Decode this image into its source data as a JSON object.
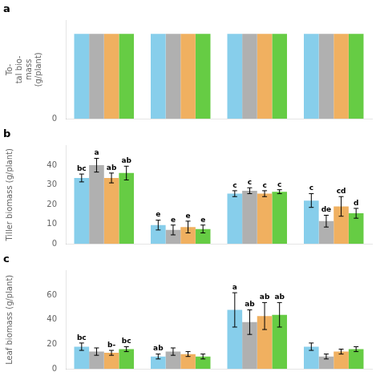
{
  "chart_data": [
    {
      "type": "bar",
      "title": "a",
      "ylabel": "To-\ntal bio-\nmass\n(g/plant)",
      "categories": [
        null,
        null,
        null,
        null
      ],
      "series": [
        {
          "color": "#87CEEB",
          "values": [
            95,
            95,
            95,
            95
          ]
        },
        {
          "color": "#B0B0B0",
          "values": [
            95,
            95,
            95,
            95
          ]
        },
        {
          "color": "#F0B060",
          "values": [
            95,
            95,
            95,
            95
          ]
        },
        {
          "color": "#66CC44",
          "values": [
            95,
            95,
            95,
            95
          ]
        }
      ],
      "ylim": [
        0,
        110
      ],
      "yticks": [
        0
      ],
      "grid": false,
      "tick_labels": "y"
    },
    {
      "type": "bar",
      "title": "b",
      "ylabel": "Tiller biomass (g/plant)",
      "categories": [
        null,
        null,
        null,
        null
      ],
      "series": [
        {
          "color": "#87CEEB",
          "values": [
            33.5,
            9.5,
            25.5,
            22.0
          ],
          "errors": [
            2.0,
            2.5,
            1.5,
            3.5
          ],
          "annotations": [
            "bc",
            "e",
            "c",
            "c"
          ]
        },
        {
          "color": "#B0B0B0",
          "values": [
            40.0,
            7.0,
            27.0,
            11.5
          ],
          "errors": [
            3.5,
            2.5,
            1.5,
            3.0
          ],
          "annotations": [
            "a",
            "e",
            "c",
            "de"
          ]
        },
        {
          "color": "#F0B060",
          "values": [
            33.5,
            8.5,
            25.5,
            19.0
          ],
          "errors": [
            2.5,
            3.0,
            1.5,
            5.0
          ],
          "annotations": [
            "ab",
            "e",
            "c",
            "cd"
          ]
        },
        {
          "color": "#66CC44",
          "values": [
            36.0,
            7.5,
            26.5,
            15.5
          ],
          "errors": [
            3.5,
            2.0,
            1.0,
            2.5
          ],
          "annotations": [
            "ab",
            "e",
            "c",
            "d"
          ]
        }
      ],
      "ylim": [
        0,
        50
      ],
      "yticks": [
        0,
        10,
        20,
        30,
        40
      ],
      "grid": false,
      "tick_labels": "y"
    },
    {
      "type": "bar",
      "title": "c",
      "ylabel": "Leaf biomass (g/plant)",
      "categories": [
        null,
        null,
        null,
        null
      ],
      "series": [
        {
          "color": "#87CEEB",
          "values": [
            18.0,
            10.0,
            48.0,
            18.0
          ],
          "errors": [
            3.0,
            2.0,
            14.0,
            3.0
          ],
          "annotations": [
            "bc",
            "ab",
            "a",
            null
          ]
        },
        {
          "color": "#B0B0B0",
          "values": [
            14.0,
            14.0,
            38.0,
            10.0
          ],
          "errors": [
            3.0,
            3.0,
            10.0,
            2.0
          ],
          "annotations": [
            null,
            null,
            "ab",
            null
          ]
        },
        {
          "color": "#F0B060",
          "values": [
            13.0,
            12.0,
            43.0,
            14.0
          ],
          "errors": [
            2.0,
            2.0,
            11.0,
            2.0
          ],
          "annotations": [
            "b-",
            null,
            "ab",
            null
          ]
        },
        {
          "color": "#66CC44",
          "values": [
            16.0,
            10.0,
            44.0,
            16.0
          ],
          "errors": [
            2.0,
            2.0,
            10.0,
            2.0
          ],
          "annotations": [
            "bc",
            null,
            "ab",
            null
          ]
        }
      ],
      "ylim": [
        0,
        80
      ],
      "yticks": [
        0,
        20,
        40,
        60
      ],
      "grid": false,
      "tick_labels": "y"
    }
  ]
}
